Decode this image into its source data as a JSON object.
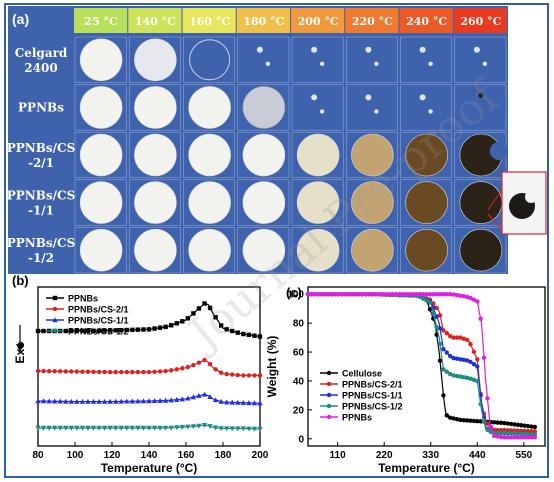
{
  "panel_a": {
    "label": "(a)",
    "temperatures": [
      "25 °C",
      "140 °C",
      "160 °C",
      "180 °C",
      "200 °C",
      "220 °C",
      "240 °C",
      "260 °C"
    ],
    "header_colors": [
      "#b8e05a",
      "#cde45a",
      "#e8e65a",
      "#f0c04a",
      "#f09a3c",
      "#ef7a30",
      "#ec5a28",
      "#e83a20"
    ],
    "rows": [
      {
        "label": "Celgard\n2400",
        "states": [
          "white",
          "translucent",
          "ghost",
          "flakes",
          "flakes",
          "flakes",
          "flakes",
          "flakes"
        ]
      },
      {
        "label": "PPNBs",
        "states": [
          "white",
          "white",
          "white",
          "mesh",
          "flakes",
          "flakes",
          "flakes",
          "dot"
        ]
      },
      {
        "label": "PPNBs/CS\n-2/1",
        "states": [
          "white",
          "white",
          "white",
          "white",
          "beige",
          "tan",
          "brown",
          "dark-bite"
        ]
      },
      {
        "label": "PPNBs/CS\n-1/1",
        "states": [
          "white",
          "white",
          "white",
          "white",
          "beige",
          "tan",
          "brown",
          "dark"
        ]
      },
      {
        "label": "PPNBs/CS\n-1/2",
        "states": [
          "white",
          "white",
          "white",
          "white",
          "beige",
          "tan",
          "brown",
          "dark"
        ]
      }
    ]
  },
  "panel_b": {
    "label": "(b)",
    "ylabel": "Exo",
    "xlabel": "Temperature (°C)",
    "xticks": [
      "80",
      "100",
      "120",
      "140",
      "160",
      "180",
      "200"
    ],
    "legend": [
      {
        "name": "PPNBs",
        "color": "#000000",
        "marker": "square"
      },
      {
        "name": "PPNBs/CS-2/1",
        "color": "#e02020",
        "marker": "circle"
      },
      {
        "name": "PPNBs/CS-1/1",
        "color": "#1f2fe0",
        "marker": "triangle"
      },
      {
        "name": "PPNBs/CS-1/2",
        "color": "#1e8c80",
        "marker": "triangle-down"
      }
    ]
  },
  "panel_c": {
    "label": "(c)",
    "ylabel": "Weight (%)",
    "xlabel": "Temperature (°C)",
    "xticks": [
      "110",
      "220",
      "330",
      "440",
      "550"
    ],
    "yticks": [
      "0",
      "20",
      "40",
      "60",
      "80",
      "100"
    ],
    "legend": [
      {
        "name": "Cellulose",
        "color": "#000000",
        "marker": "circle"
      },
      {
        "name": "PPNBs/CS-2/1",
        "color": "#e02020",
        "marker": "circle"
      },
      {
        "name": "PPNBs/CS-1/1",
        "color": "#1f2fe0",
        "marker": "circle"
      },
      {
        "name": "PPNBs/CS-1/2",
        "color": "#1e8c80",
        "marker": "circle"
      },
      {
        "name": "PPNBs",
        "color": "#e020e0",
        "marker": "circle"
      }
    ]
  },
  "chart_data": [
    {
      "type": "line",
      "title": "",
      "xlabel": "Temperature (°C)",
      "ylabel": "Exo",
      "xlim": [
        80,
        200
      ],
      "x": [
        80,
        100,
        120,
        140,
        150,
        160,
        165,
        170,
        172,
        175,
        180,
        190,
        200
      ],
      "series": [
        {
          "name": "PPNBs",
          "values": [
            0.0,
            0.0,
            0.01,
            0.03,
            0.08,
            0.2,
            0.35,
            0.5,
            0.48,
            0.3,
            0.05,
            -0.05,
            -0.1
          ]
        },
        {
          "name": "PPNBs/CS-2/1",
          "values": [
            0.0,
            -0.01,
            -0.02,
            -0.02,
            0.0,
            0.06,
            0.12,
            0.2,
            0.16,
            0.05,
            -0.05,
            -0.08,
            -0.08
          ]
        },
        {
          "name": "PPNBs/CS-1/1",
          "values": [
            0.0,
            -0.01,
            -0.01,
            0.0,
            0.01,
            0.04,
            0.08,
            0.12,
            0.1,
            0.03,
            -0.02,
            -0.03,
            -0.04
          ]
        },
        {
          "name": "PPNBs/CS-1/2",
          "values": [
            0.0,
            0.0,
            0.0,
            0.0,
            0.0,
            0.02,
            0.03,
            0.05,
            0.04,
            0.01,
            -0.01,
            -0.01,
            -0.02
          ]
        }
      ],
      "grid": false,
      "legend": "top-left"
    },
    {
      "type": "line",
      "title": "",
      "xlabel": "Temperature (°C)",
      "ylabel": "Weight (%)",
      "xlim": [
        40,
        600
      ],
      "ylim": [
        -5,
        105
      ],
      "yticks": [
        0,
        20,
        40,
        60,
        80,
        100
      ],
      "xticks": [
        110,
        220,
        330,
        440,
        550
      ],
      "series": [
        {
          "name": "Cellulose",
          "x": [
            40,
            200,
            300,
            320,
            340,
            350,
            360,
            365,
            370,
            400,
            500,
            580
          ],
          "values": [
            100,
            100,
            99,
            96,
            80,
            60,
            30,
            18,
            15,
            13,
            11,
            8
          ]
        },
        {
          "name": "PPNBs/CS-2/1",
          "x": [
            40,
            200,
            300,
            330,
            350,
            360,
            380,
            400,
            420,
            440,
            450,
            460,
            470,
            480,
            500,
            580
          ],
          "values": [
            100,
            100,
            99,
            96,
            88,
            75,
            70,
            70,
            68,
            55,
            25,
            12,
            8,
            6,
            6,
            5
          ]
        },
        {
          "name": "PPNBs/CS-1/1",
          "x": [
            40,
            200,
            300,
            330,
            350,
            360,
            380,
            400,
            420,
            440,
            450,
            460,
            470,
            480,
            500,
            580
          ],
          "values": [
            100,
            100,
            99,
            95,
            80,
            62,
            56,
            55,
            54,
            50,
            25,
            8,
            5,
            4,
            4,
            3
          ]
        },
        {
          "name": "PPNBs/CS-1/2",
          "x": [
            40,
            200,
            300,
            330,
            350,
            360,
            380,
            400,
            420,
            440,
            450,
            460,
            470,
            480,
            500,
            580
          ],
          "values": [
            100,
            100,
            99,
            94,
            70,
            48,
            44,
            43,
            42,
            40,
            20,
            7,
            5,
            4,
            4,
            3
          ]
        },
        {
          "name": "PPNBs",
          "x": [
            40,
            200,
            300,
            380,
            400,
            420,
            440,
            450,
            455,
            460,
            470,
            480,
            500,
            580
          ],
          "values": [
            100,
            100,
            100,
            100,
            99,
            98,
            95,
            80,
            60,
            40,
            10,
            2,
            1,
            1
          ]
        }
      ],
      "grid": false,
      "legend": "bottom-left"
    }
  ]
}
